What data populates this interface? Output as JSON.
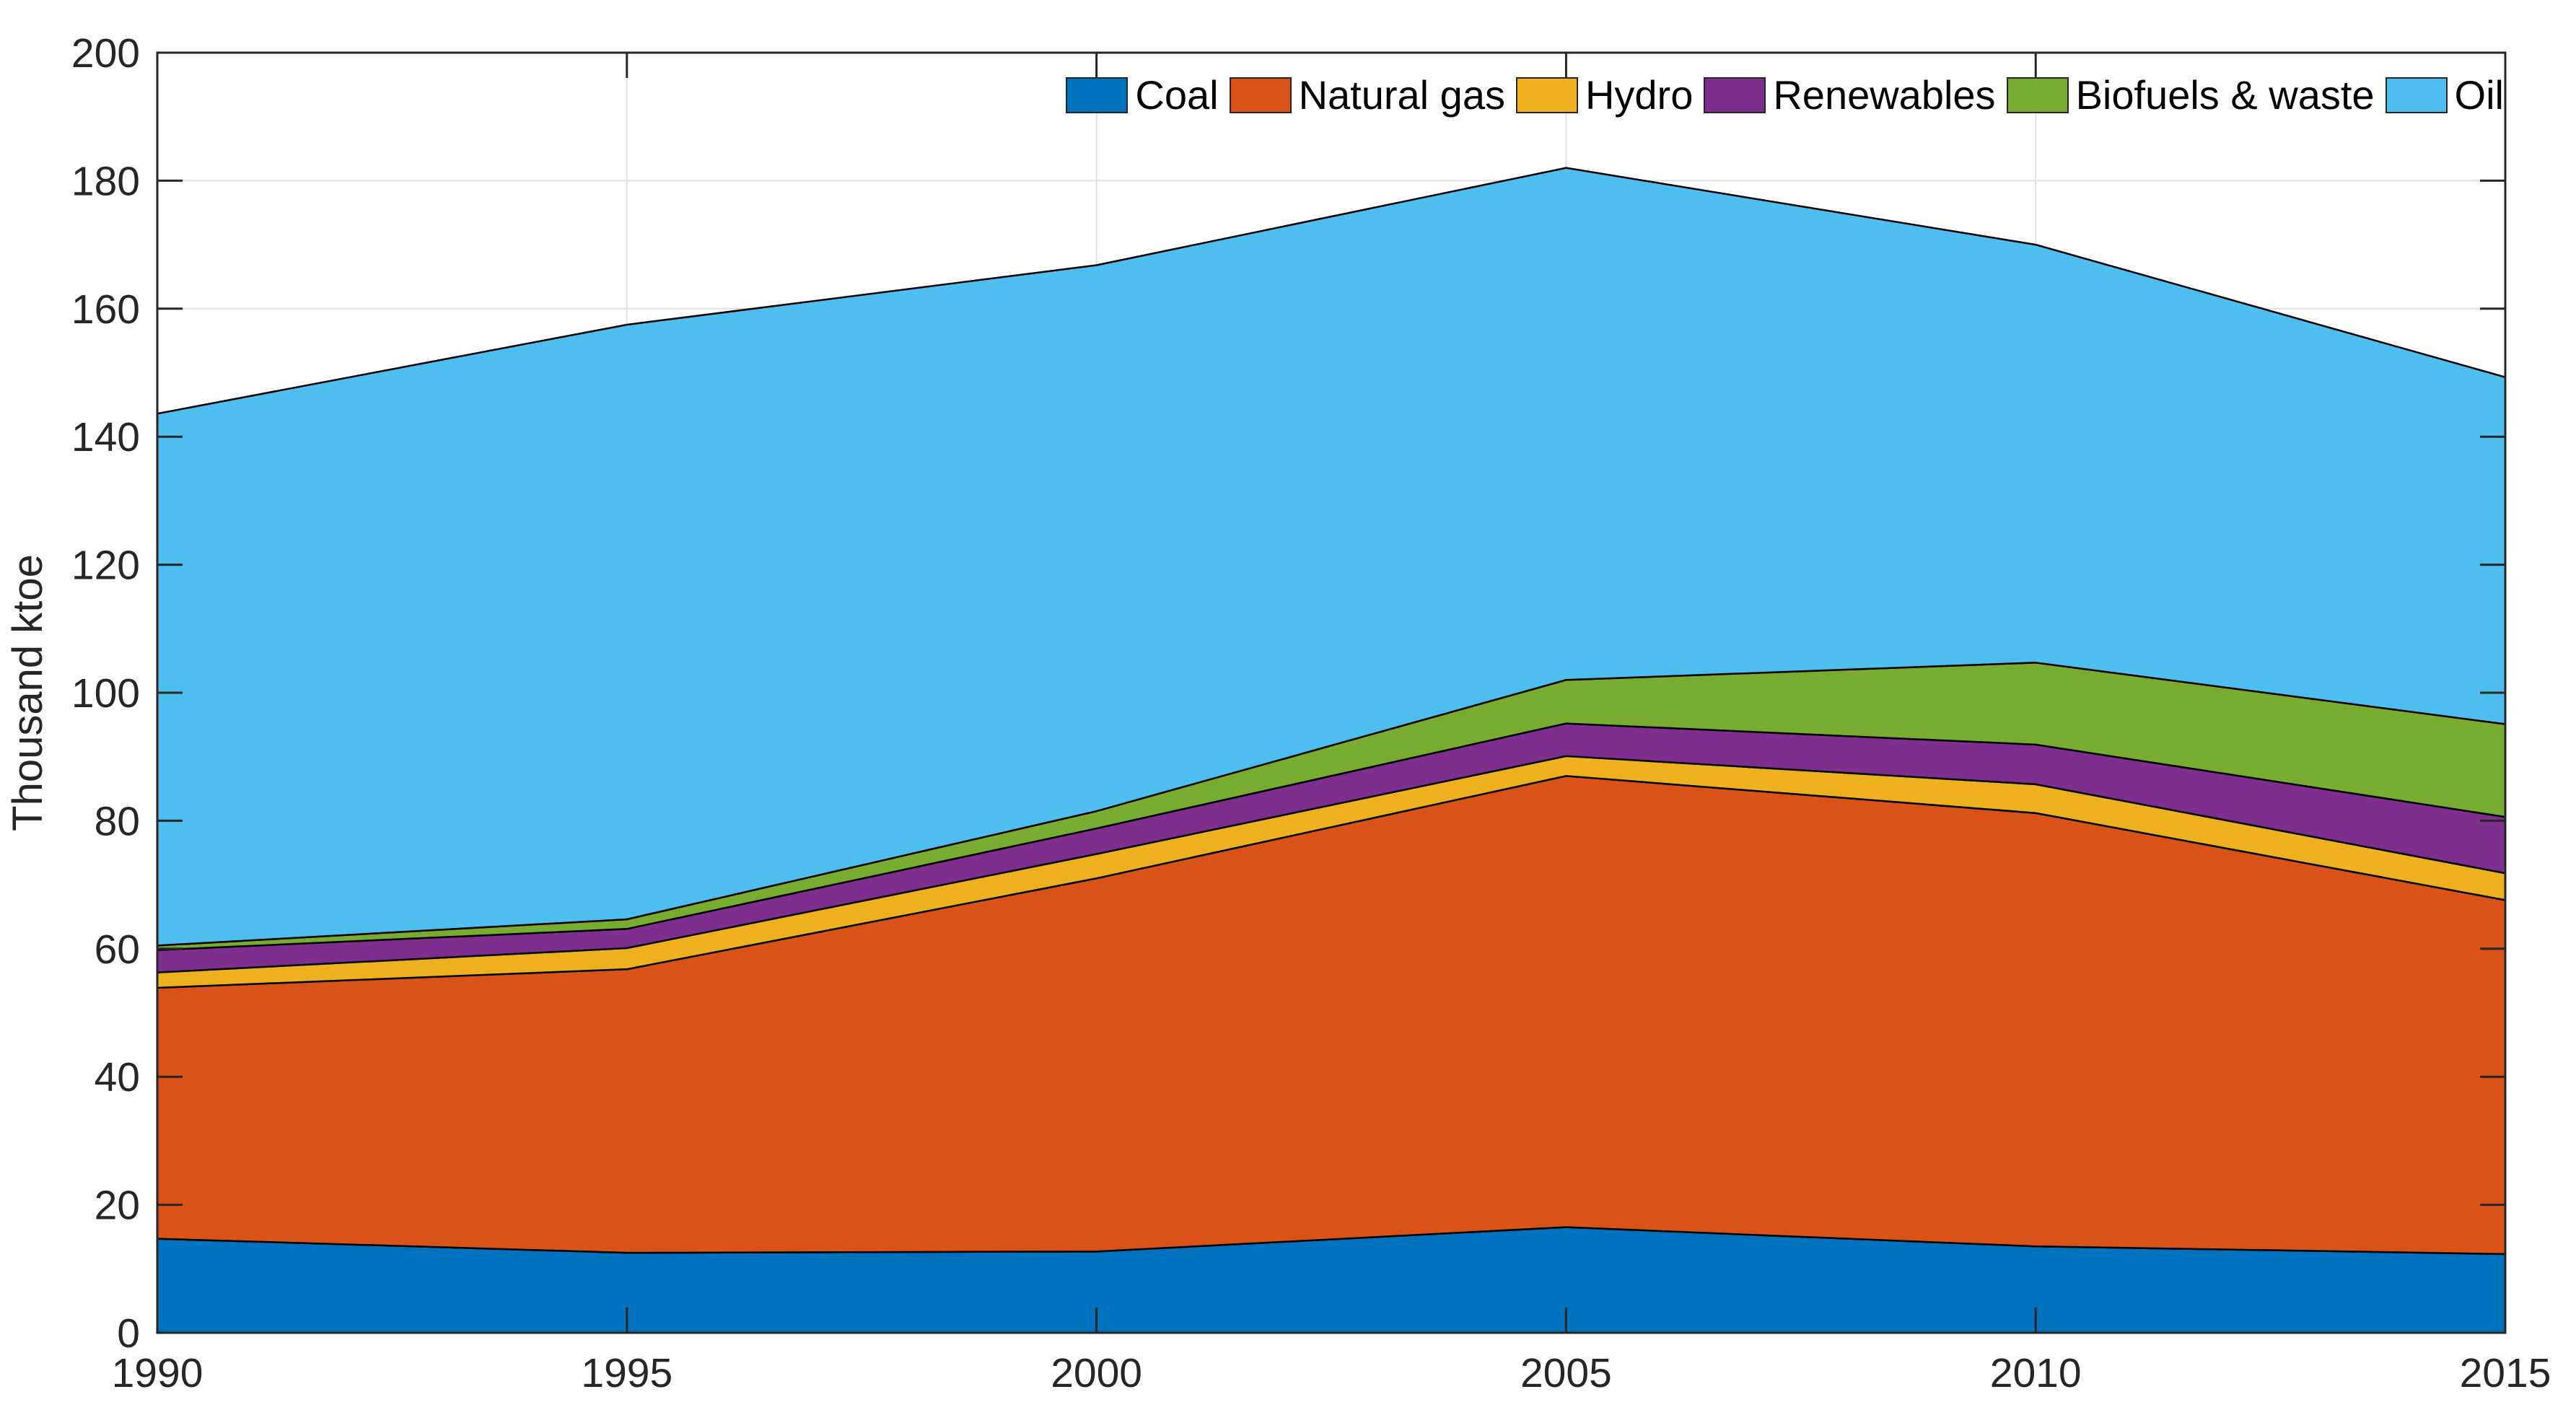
{
  "chart_data": {
    "type": "area",
    "stacked": true,
    "title": "",
    "xlabel": "",
    "ylabel": "Thousand ktoe",
    "x": [
      1990,
      1995,
      2000,
      2005,
      2010,
      2015
    ],
    "series": [
      {
        "name": "Coal",
        "color": "#0072BD",
        "values": [
          14.7,
          12.5,
          12.7,
          16.5,
          13.5,
          12.3
        ]
      },
      {
        "name": "Natural gas",
        "color": "#D95319",
        "values": [
          39.2,
          44.3,
          58.3,
          70.5,
          67.7,
          55.3
        ]
      },
      {
        "name": "Hydro",
        "color": "#EDB120",
        "values": [
          2.4,
          3.3,
          3.8,
          3.1,
          4.5,
          4.2
        ]
      },
      {
        "name": "Renewables",
        "color": "#7E2F8E",
        "values": [
          3.5,
          3.0,
          4.0,
          5.1,
          6.2,
          8.8
        ]
      },
      {
        "name": "Biofuels & waste",
        "color": "#77AC30",
        "values": [
          0.7,
          1.5,
          2.7,
          6.8,
          12.8,
          14.5
        ]
      },
      {
        "name": "Oil",
        "color": "#4DBEEE",
        "values": [
          83.1,
          92.9,
          85.3,
          80.0,
          65.3,
          54.2
        ]
      }
    ],
    "stack_totals": [
      143.6,
      157.5,
      166.8,
      182.0,
      170.0,
      149.3
    ],
    "xlim": [
      1990,
      2015
    ],
    "ylim": [
      0,
      200
    ],
    "xticks": [
      1990,
      1995,
      2000,
      2005,
      2010,
      2015
    ],
    "yticks": [
      0,
      20,
      40,
      60,
      80,
      100,
      120,
      140,
      160,
      180,
      200
    ],
    "grid": true,
    "legend": {
      "position": "top-right-inside",
      "orientation": "horizontal"
    },
    "axis_color": "#262626",
    "area_edge_color": "#000000",
    "grid_color": "#e0e0e0",
    "background_color": "#ffffff"
  }
}
